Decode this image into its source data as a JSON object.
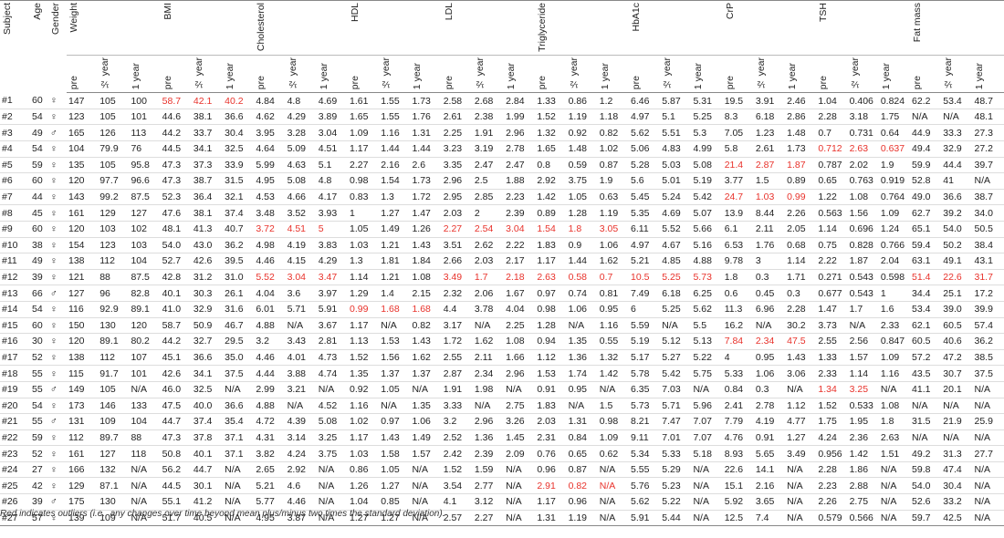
{
  "table": {
    "fixed_headers": [
      "Subject",
      "Age",
      "Gender"
    ],
    "groups": [
      {
        "label": "Weight",
        "sub": [
          "pre",
          "½ year",
          "1 year"
        ]
      },
      {
        "label": "BMI",
        "sub": [
          "pre",
          "½ year",
          "1 year"
        ]
      },
      {
        "label": "Cholesterol",
        "sub": [
          "pre",
          "½ year",
          "1 year"
        ]
      },
      {
        "label": "HDL",
        "sub": [
          "pre",
          "½ year",
          "1 year"
        ]
      },
      {
        "label": "LDL",
        "sub": [
          "pre",
          "½ year",
          "1 year"
        ]
      },
      {
        "label": "Triglyceride",
        "sub": [
          "pre",
          "½ year",
          "1 year"
        ]
      },
      {
        "label": "HbA1c",
        "sub": [
          "pre",
          "½ year",
          "1 year"
        ]
      },
      {
        "label": "CrP",
        "sub": [
          "pre",
          "½ year",
          "1 year"
        ]
      },
      {
        "label": "TSH",
        "sub": [
          "pre",
          "½ year",
          "1 year"
        ]
      },
      {
        "label": "Fat mass",
        "sub": [
          "pre",
          "½ year",
          "1 year"
        ]
      }
    ],
    "outlier_color": "#e8322b",
    "rows": [
      {
        "cells": [
          "#1",
          "60",
          "♀",
          "147",
          "105",
          "100",
          "58.7",
          "42.1",
          "40.2",
          "4.84",
          "4.8",
          "4.69",
          "1.61",
          "1.55",
          "1.73",
          "2.58",
          "2.68",
          "2.84",
          "1.33",
          "0.86",
          "1.2",
          "6.46",
          "5.87",
          "5.31",
          "19.5",
          "3.91",
          "2.46",
          "1.04",
          "0.406",
          "0.824",
          "62.2",
          "53.4",
          "48.7"
        ],
        "red": [
          6,
          7,
          8
        ]
      },
      {
        "cells": [
          "#2",
          "54",
          "♀",
          "123",
          "105",
          "101",
          "44.6",
          "38.1",
          "36.6",
          "4.62",
          "4.29",
          "3.89",
          "1.65",
          "1.55",
          "1.76",
          "2.61",
          "2.38",
          "1.99",
          "1.52",
          "1.19",
          "1.18",
          "4.97",
          "5.1",
          "5.25",
          "8.3",
          "6.18",
          "2.86",
          "2.28",
          "3.18",
          "1.75",
          "N/A",
          "N/A",
          "48.1"
        ],
        "red": []
      },
      {
        "cells": [
          "#3",
          "49",
          "♂",
          "165",
          "126",
          "113",
          "44.2",
          "33.7",
          "30.4",
          "3.95",
          "3.28",
          "3.04",
          "1.09",
          "1.16",
          "1.31",
          "2.25",
          "1.91",
          "2.96",
          "1.32",
          "0.92",
          "0.82",
          "5.62",
          "5.51",
          "5.3",
          "7.05",
          "1.23",
          "1.48",
          "0.7",
          "0.731",
          "0.64",
          "44.9",
          "33.3",
          "27.3"
        ],
        "red": []
      },
      {
        "cells": [
          "#4",
          "54",
          "♀",
          "104",
          "79.9",
          "76",
          "44.5",
          "34.1",
          "32.5",
          "4.64",
          "5.09",
          "4.51",
          "1.17",
          "1.44",
          "1.44",
          "3.23",
          "3.19",
          "2.78",
          "1.65",
          "1.48",
          "1.02",
          "5.06",
          "4.83",
          "4.99",
          "5.8",
          "2.61",
          "1.73",
          "0.712",
          "2.63",
          "0.637",
          "49.4",
          "32.9",
          "27.2"
        ],
        "red": [
          27,
          28,
          29
        ]
      },
      {
        "cells": [
          "#5",
          "59",
          "♀",
          "135",
          "105",
          "95.8",
          "47.3",
          "37.3",
          "33.9",
          "5.99",
          "4.63",
          "5.1",
          "2.27",
          "2.16",
          "2.6",
          "3.35",
          "2.47",
          "2.47",
          "0.8",
          "0.59",
          "0.87",
          "5.28",
          "5.03",
          "5.08",
          "21.4",
          "2.87",
          "1.87",
          "0.787",
          "2.02",
          "1.9",
          "59.9",
          "44.4",
          "39.7"
        ],
        "red": [
          24,
          25,
          26
        ]
      },
      {
        "cells": [
          "#6",
          "60",
          "♀",
          "120",
          "97.7",
          "96.6",
          "47.3",
          "38.7",
          "31.5",
          "4.95",
          "5.08",
          "4.8",
          "0.98",
          "1.54",
          "1.73",
          "2.96",
          "2.5",
          "1.88",
          "2.92",
          "3.75",
          "1.9",
          "5.6",
          "5.01",
          "5.19",
          "3.77",
          "1.5",
          "0.89",
          "0.65",
          "0.763",
          "0.919",
          "52.8",
          "41",
          "N/A"
        ],
        "red": []
      },
      {
        "cells": [
          "#7",
          "44",
          "♀",
          "143",
          "99.2",
          "87.5",
          "52.3",
          "36.4",
          "32.1",
          "4.53",
          "4.66",
          "4.17",
          "0.83",
          "1.3",
          "1.72",
          "2.95",
          "2.85",
          "2.23",
          "1.42",
          "1.05",
          "0.63",
          "5.45",
          "5.24",
          "5.42",
          "24.7",
          "1.03",
          "0.99",
          "1.22",
          "1.08",
          "0.764",
          "49.0",
          "36.6",
          "38.7"
        ],
        "red": [
          24,
          25,
          26
        ]
      },
      {
        "cells": [
          "#8",
          "45",
          "♀",
          "161",
          "129",
          "127",
          "47.6",
          "38.1",
          "37.4",
          "3.48",
          "3.52",
          "3.93",
          "1",
          "1.27",
          "1.47",
          "2.03",
          "2",
          "2.39",
          "0.89",
          "1.28",
          "1.19",
          "5.35",
          "4.69",
          "5.07",
          "13.9",
          "8.44",
          "2.26",
          "0.563",
          "1.56",
          "1.09",
          "62.7",
          "39.2",
          "34.0"
        ],
        "red": []
      },
      {
        "cells": [
          "#9",
          "60",
          "♀",
          "120",
          "103",
          "102",
          "48.1",
          "41.3",
          "40.7",
          "3.72",
          "4.51",
          "5",
          "1.05",
          "1.49",
          "1.26",
          "2.27",
          "2.54",
          "3.04",
          "1.54",
          "1.8",
          "3.05",
          "6.11",
          "5.52",
          "5.66",
          "6.1",
          "2.11",
          "2.05",
          "1.14",
          "0.696",
          "1.24",
          "65.1",
          "54.0",
          "50.5"
        ],
        "red": [
          9,
          10,
          11,
          15,
          16,
          17,
          18,
          19,
          20
        ]
      },
      {
        "cells": [
          "#10",
          "38",
          "♀",
          "154",
          "123",
          "103",
          "54.0",
          "43.0",
          "36.2",
          "4.98",
          "4.19",
          "3.83",
          "1.03",
          "1.21",
          "1.43",
          "3.51",
          "2.62",
          "2.22",
          "1.83",
          "0.9",
          "1.06",
          "4.97",
          "4.67",
          "5.16",
          "6.53",
          "1.76",
          "0.68",
          "0.75",
          "0.828",
          "0.766",
          "59.4",
          "50.2",
          "38.4"
        ],
        "red": []
      },
      {
        "cells": [
          "#11",
          "49",
          "♀",
          "138",
          "112",
          "104",
          "52.7",
          "42.6",
          "39.5",
          "4.46",
          "4.15",
          "4.29",
          "1.3",
          "1.81",
          "1.84",
          "2.66",
          "2.03",
          "2.17",
          "1.17",
          "1.44",
          "1.62",
          "5.21",
          "4.85",
          "4.88",
          "9.78",
          "3",
          "1.14",
          "2.22",
          "1.87",
          "2.04",
          "63.1",
          "49.1",
          "43.1"
        ],
        "red": []
      },
      {
        "cells": [
          "#12",
          "39",
          "♀",
          "121",
          "88",
          "87.5",
          "42.8",
          "31.2",
          "31.0",
          "5.52",
          "3.04",
          "3.47",
          "1.14",
          "1.21",
          "1.08",
          "3.49",
          "1.7",
          "2.18",
          "2.63",
          "0.58",
          "0.7",
          "10.5",
          "5.25",
          "5.73",
          "1.8",
          "0.3",
          "1.71",
          "0.271",
          "0.543",
          "0.598",
          "51.4",
          "22.6",
          "31.7"
        ],
        "red": [
          9,
          10,
          11,
          15,
          16,
          17,
          18,
          19,
          20,
          21,
          22,
          23,
          30,
          31,
          32
        ]
      },
      {
        "cells": [
          "#13",
          "66",
          "♂",
          "127",
          "96",
          "82.8",
          "40.1",
          "30.3",
          "26.1",
          "4.04",
          "3.6",
          "3.97",
          "1.29",
          "1.4",
          "2.15",
          "2.32",
          "2.06",
          "1.67",
          "0.97",
          "0.74",
          "0.81",
          "7.49",
          "6.18",
          "6.25",
          "0.6",
          "0.45",
          "0.3",
          "0.677",
          "0.543",
          "1",
          "34.4",
          "25.1",
          "17.2"
        ],
        "red": []
      },
      {
        "cells": [
          "#14",
          "54",
          "♀",
          "116",
          "92.9",
          "89.1",
          "41.0",
          "32.9",
          "31.6",
          "6.01",
          "5.71",
          "5.91",
          "0.99",
          "1.68",
          "1.68",
          "4.4",
          "3.78",
          "4.04",
          "0.98",
          "1.06",
          "0.95",
          "6",
          "5.25",
          "5.62",
          "11.3",
          "6.96",
          "2.28",
          "1.47",
          "1.7",
          "1.6",
          "53.4",
          "39.0",
          "39.9"
        ],
        "red": [
          12,
          13,
          14
        ]
      },
      {
        "cells": [
          "#15",
          "60",
          "♀",
          "150",
          "130",
          "120",
          "58.7",
          "50.9",
          "46.7",
          "4.88",
          "N/A",
          "3.67",
          "1.17",
          "N/A",
          "0.82",
          "3.17",
          "N/A",
          "2.25",
          "1.28",
          "N/A",
          "1.16",
          "5.59",
          "N/A",
          "5.5",
          "16.2",
          "N/A",
          "30.2",
          "3.73",
          "N/A",
          "2.33",
          "62.1",
          "60.5",
          "57.4"
        ],
        "red": []
      },
      {
        "cells": [
          "#16",
          "30",
          "♀",
          "120",
          "89.1",
          "80.2",
          "44.2",
          "32.7",
          "29.5",
          "3.2",
          "3.43",
          "2.81",
          "1.13",
          "1.53",
          "1.43",
          "1.72",
          "1.62",
          "1.08",
          "0.94",
          "1.35",
          "0.55",
          "5.19",
          "5.12",
          "5.13",
          "7.84",
          "2.34",
          "47.5",
          "2.55",
          "2.56",
          "0.847",
          "60.5",
          "40.6",
          "36.2"
        ],
        "red": [
          24,
          25,
          26
        ]
      },
      {
        "cells": [
          "#17",
          "52",
          "♀",
          "138",
          "112",
          "107",
          "45.1",
          "36.6",
          "35.0",
          "4.46",
          "4.01",
          "4.73",
          "1.52",
          "1.56",
          "1.62",
          "2.55",
          "2.11",
          "1.66",
          "1.12",
          "1.36",
          "1.32",
          "5.17",
          "5.27",
          "5.22",
          "4",
          "0.95",
          "1.43",
          "1.33",
          "1.57",
          "1.09",
          "57.2",
          "47.2",
          "38.5"
        ],
        "red": []
      },
      {
        "cells": [
          "#18",
          "55",
          "♀",
          "115",
          "91.7",
          "101",
          "42.6",
          "34.1",
          "37.5",
          "4.44",
          "3.88",
          "4.74",
          "1.35",
          "1.37",
          "1.37",
          "2.87",
          "2.34",
          "2.96",
          "1.53",
          "1.74",
          "1.42",
          "5.78",
          "5.42",
          "5.75",
          "5.33",
          "1.06",
          "3.06",
          "2.33",
          "1.14",
          "1.16",
          "43.5",
          "30.7",
          "37.5"
        ],
        "red": []
      },
      {
        "cells": [
          "#19",
          "55",
          "♂",
          "149",
          "105",
          "N/A",
          "46.0",
          "32.5",
          "N/A",
          "2.99",
          "3.21",
          "N/A",
          "0.92",
          "1.05",
          "N/A",
          "1.91",
          "1.98",
          "N/A",
          "0.91",
          "0.95",
          "N/A",
          "6.35",
          "7.03",
          "N/A",
          "0.84",
          "0.3",
          "N/A",
          "1.34",
          "3.25",
          "N/A",
          "41.1",
          "20.1",
          "N/A"
        ],
        "red": [
          27,
          28
        ]
      },
      {
        "cells": [
          "#20",
          "54",
          "♀",
          "173",
          "146",
          "133",
          "47.5",
          "40.0",
          "36.6",
          "4.88",
          "N/A",
          "4.52",
          "1.16",
          "N/A",
          "1.35",
          "3.33",
          "N/A",
          "2.75",
          "1.83",
          "N/A",
          "1.5",
          "5.73",
          "5.71",
          "5.96",
          "2.41",
          "2.78",
          "1.12",
          "1.52",
          "0.533",
          "1.08",
          "N/A",
          "N/A",
          "N/A"
        ],
        "red": []
      },
      {
        "cells": [
          "#21",
          "55",
          "♂",
          "131",
          "109",
          "104",
          "44.7",
          "37.4",
          "35.4",
          "4.72",
          "4.39",
          "5.08",
          "1.02",
          "0.97",
          "1.06",
          "3.2",
          "2.96",
          "3.26",
          "2.03",
          "1.31",
          "0.98",
          "8.21",
          "7.47",
          "7.07",
          "7.79",
          "4.19",
          "4.77",
          "1.75",
          "1.95",
          "1.8",
          "31.5",
          "21.9",
          "25.9"
        ],
        "red": []
      },
      {
        "cells": [
          "#22",
          "59",
          "♀",
          "112",
          "89.7",
          "88",
          "47.3",
          "37.8",
          "37.1",
          "4.31",
          "3.14",
          "3.25",
          "1.17",
          "1.43",
          "1.49",
          "2.52",
          "1.36",
          "1.45",
          "2.31",
          "0.84",
          "1.09",
          "9.11",
          "7.01",
          "7.07",
          "4.76",
          "0.91",
          "1.27",
          "4.24",
          "2.36",
          "2.63",
          "N/A",
          "N/A",
          "N/A"
        ],
        "red": []
      },
      {
        "cells": [
          "#23",
          "52",
          "♀",
          "161",
          "127",
          "118",
          "50.8",
          "40.1",
          "37.1",
          "3.82",
          "4.24",
          "3.75",
          "1.03",
          "1.58",
          "1.57",
          "2.42",
          "2.39",
          "2.09",
          "0.76",
          "0.65",
          "0.62",
          "5.34",
          "5.33",
          "5.18",
          "8.93",
          "5.65",
          "3.49",
          "0.956",
          "1.42",
          "1.51",
          "49.2",
          "31.3",
          "27.7"
        ],
        "red": []
      },
      {
        "cells": [
          "#24",
          "27",
          "♀",
          "166",
          "132",
          "N/A",
          "56.2",
          "44.7",
          "N/A",
          "2.65",
          "2.92",
          "N/A",
          "0.86",
          "1.05",
          "N/A",
          "1.52",
          "1.59",
          "N/A",
          "0.96",
          "0.87",
          "N/A",
          "5.55",
          "5.29",
          "N/A",
          "22.6",
          "14.1",
          "N/A",
          "2.28",
          "1.86",
          "N/A",
          "59.8",
          "47.4",
          "N/A"
        ],
        "red": []
      },
      {
        "cells": [
          "#25",
          "42",
          "♀",
          "129",
          "87.1",
          "N/A",
          "44.5",
          "30.1",
          "N/A",
          "5.21",
          "4.6",
          "N/A",
          "1.26",
          "1.27",
          "N/A",
          "3.54",
          "2.77",
          "N/A",
          "2.91",
          "0.82",
          "N/A",
          "5.76",
          "5.23",
          "N/A",
          "15.1",
          "2.16",
          "N/A",
          "2.23",
          "2.88",
          "N/A",
          "54.0",
          "30.4",
          "N/A"
        ],
        "red": [
          18,
          19,
          20
        ]
      },
      {
        "cells": [
          "#26",
          "39",
          "♂",
          "175",
          "130",
          "N/A",
          "55.1",
          "41.2",
          "N/A",
          "5.77",
          "4.46",
          "N/A",
          "1.04",
          "0.85",
          "N/A",
          "4.1",
          "3.12",
          "N/A",
          "1.17",
          "0.96",
          "N/A",
          "5.62",
          "5.22",
          "N/A",
          "5.92",
          "3.65",
          "N/A",
          "2.26",
          "2.75",
          "N/A",
          "52.6",
          "33.2",
          "N/A"
        ],
        "red": []
      },
      {
        "cells": [
          "#27",
          "57",
          "♀",
          "139",
          "109",
          "N/A",
          "51.7",
          "40.5",
          "N/A",
          "4.95",
          "3.87",
          "N/A",
          "1.27",
          "1.27",
          "N/A",
          "2.57",
          "2.27",
          "N/A",
          "1.31",
          "1.19",
          "N/A",
          "5.91",
          "5.44",
          "N/A",
          "12.5",
          "7.4",
          "N/A",
          "0.579",
          "0.566",
          "N/A",
          "59.7",
          "42.5",
          "N/A"
        ],
        "red": []
      }
    ],
    "footnote": "Red indicates outliers (i.e., any changes over time beyond mean plus/minus two times the standard deviation)."
  }
}
